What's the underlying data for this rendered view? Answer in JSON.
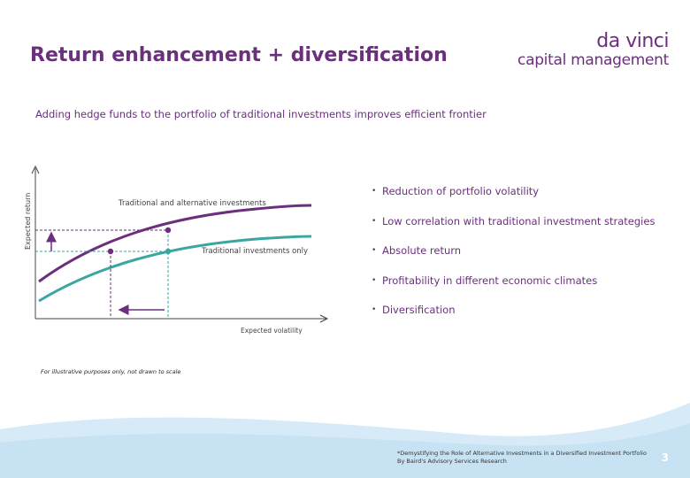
{
  "header": {
    "title": "Return enhancement + diversification",
    "logo_top": "da vinci",
    "logo_bottom": "capital management"
  },
  "subtitle": "Adding hedge funds to the portfolio of traditional investments improves efficient frontier",
  "diagram": {
    "upper_curve_label": "Traditional  and alternative investments",
    "lower_curve_label": "Traditional investments only",
    "y_axis_label": "Expected return",
    "x_axis_label": "Expected volatility"
  },
  "bullets": [
    "Reduction of portfolio volatility",
    "Low correlation with traditional investment strategies",
    "Absolute return",
    "Profitability in different economic climates",
    "Diversification"
  ],
  "bullet_symbol": "•",
  "footnote": "For illustrative purposes only, not drawn to scale",
  "source": {
    "line1": "*Demystifying the Role of Alternative Investments in a Diversified Investment Portfolio",
    "line2": "By Baird's Advisory Services Research"
  },
  "page_number": "3",
  "colors": {
    "purple": "#6b2f7e",
    "teal": "#3aa6a0",
    "light_blue": "#d6ebf7"
  }
}
